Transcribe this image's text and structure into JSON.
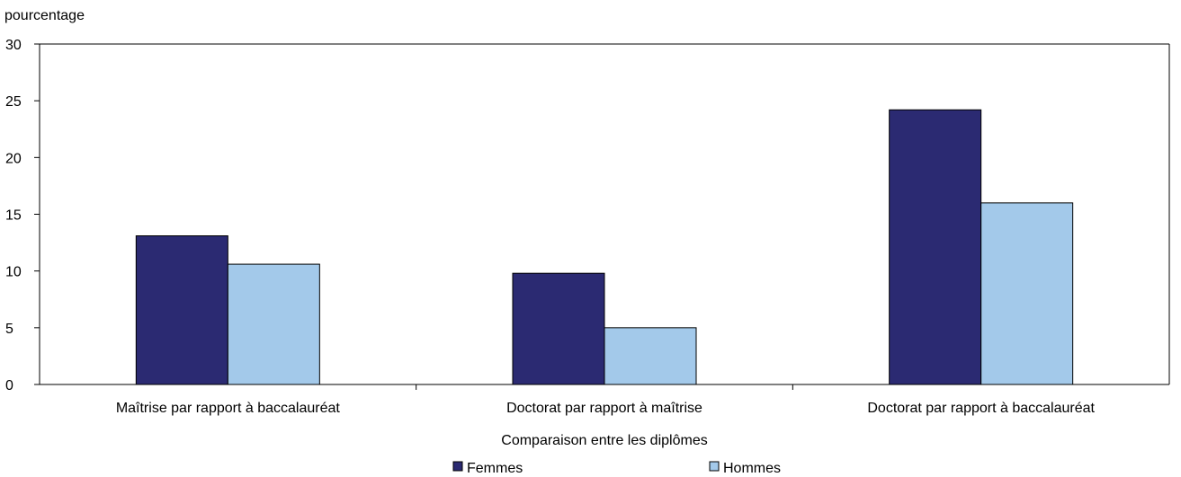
{
  "chart_data": {
    "type": "bar",
    "ylabel": "pourcentage",
    "xlabel": "Comparaison entre les diplômes",
    "categories": [
      "Maîtrise par rapport à baccalauréat",
      "Doctorat par rapport à maîtrise",
      "Doctorat par rapport à baccalauréat"
    ],
    "series": [
      {
        "name": "Femmes",
        "color": "#2b2a72",
        "values": [
          13.1,
          9.8,
          24.2
        ]
      },
      {
        "name": "Hommes",
        "color": "#a3c9ea",
        "values": [
          10.6,
          5.0,
          16.0
        ]
      }
    ],
    "ylim": [
      0,
      30
    ],
    "yticks": [
      0,
      5,
      10,
      15,
      20,
      25,
      30
    ],
    "grid": false,
    "legend": "bottom"
  }
}
